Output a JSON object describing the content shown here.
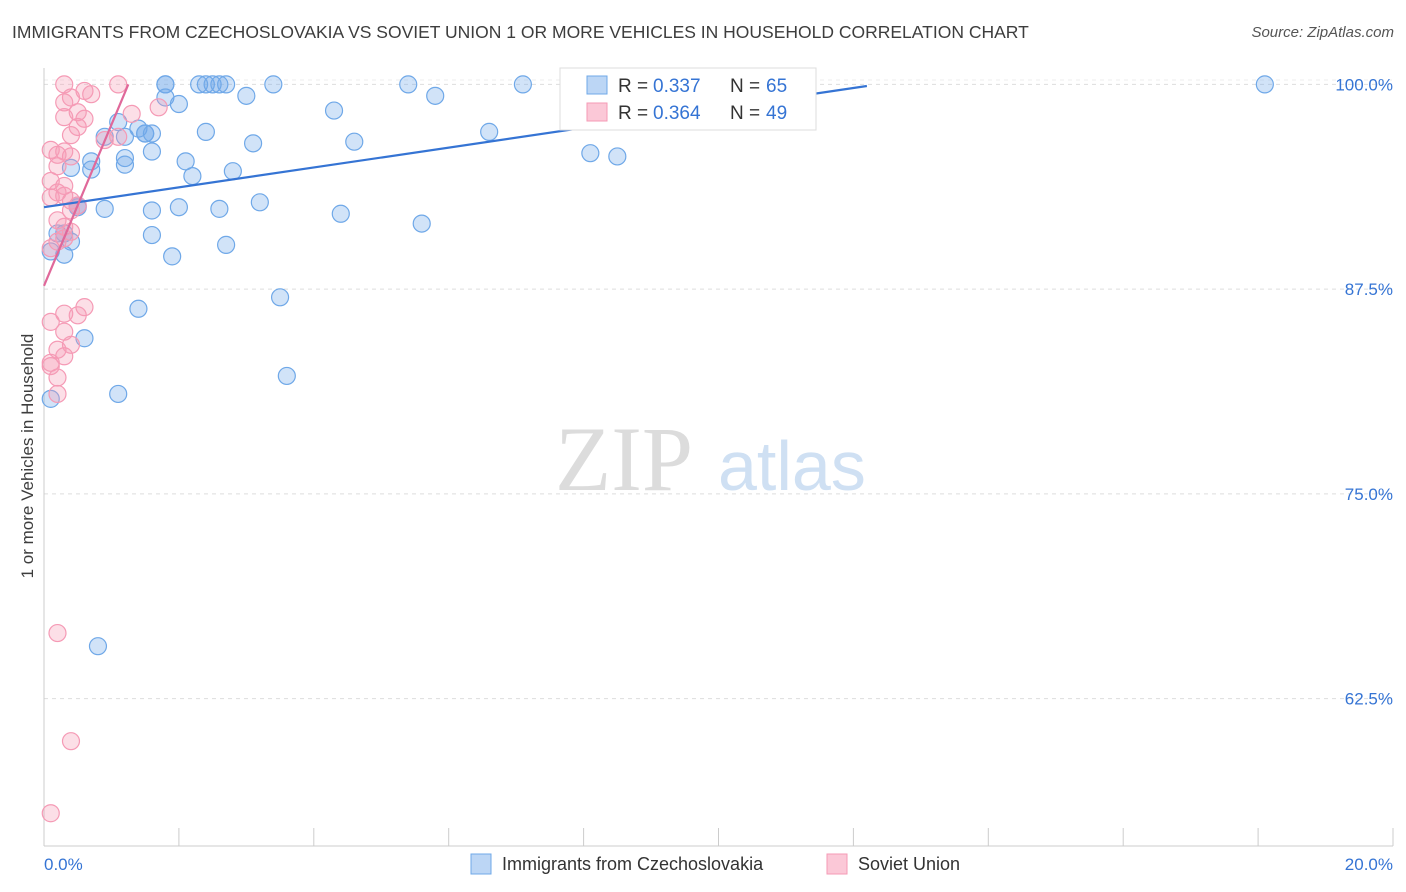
{
  "chart_data": {
    "type": "scatter",
    "title": "IMMIGRANTS FROM CZECHOSLOVAKIA VS SOVIET UNION 1 OR MORE VEHICLES IN HOUSEHOLD CORRELATION CHART",
    "source": "Source: ZipAtlas.com",
    "watermark": {
      "zip": "ZIP",
      "atlas": "atlas"
    },
    "xlabel": "",
    "ylabel": "1 or more Vehicles in Household",
    "xlim": [
      0,
      20
    ],
    "ylim": [
      53.5,
      101
    ],
    "x_tick_labels": [
      {
        "value": 0,
        "label": "0.0%"
      },
      {
        "value": 20,
        "label": "20.0%"
      }
    ],
    "y_tick_labels": [
      {
        "value": 100,
        "label": "100.0%"
      },
      {
        "value": 87.5,
        "label": "87.5%"
      },
      {
        "value": 75,
        "label": "75.0%"
      },
      {
        "value": 62.5,
        "label": "62.5%"
      }
    ],
    "grid": true,
    "legend_position": "top-center",
    "series": [
      {
        "name": "Immigrants from Czechoslovakia",
        "color": "#6fa8e8",
        "line_color": "#3574d4",
        "R": "0.337",
        "N": "65",
        "trend": {
          "x": [
            0,
            12.2
          ],
          "y": [
            92.5,
            99.9
          ]
        },
        "points": [
          [
            1.8,
            100
          ],
          [
            1.8,
            100
          ],
          [
            2.3,
            100
          ],
          [
            2.4,
            100
          ],
          [
            2.5,
            100
          ],
          [
            2.6,
            100
          ],
          [
            2.7,
            100
          ],
          [
            3.4,
            100
          ],
          [
            5.4,
            100
          ],
          [
            7.1,
            100
          ],
          [
            18.1,
            100
          ],
          [
            1.8,
            99.2
          ],
          [
            3.0,
            99.3
          ],
          [
            5.8,
            99.3
          ],
          [
            2.0,
            98.8
          ],
          [
            4.3,
            98.4
          ],
          [
            1.1,
            97.7
          ],
          [
            1.4,
            97.3
          ],
          [
            1.5,
            97.0
          ],
          [
            1.5,
            97.0
          ],
          [
            1.6,
            97.0
          ],
          [
            2.4,
            97.1
          ],
          [
            6.6,
            97.1
          ],
          [
            0.9,
            96.8
          ],
          [
            1.2,
            96.8
          ],
          [
            3.1,
            96.4
          ],
          [
            4.6,
            96.5
          ],
          [
            1.6,
            95.9
          ],
          [
            8.1,
            95.8
          ],
          [
            8.5,
            95.6
          ],
          [
            1.2,
            95.5
          ],
          [
            0.7,
            95.3
          ],
          [
            2.1,
            95.3
          ],
          [
            1.2,
            95.1
          ],
          [
            0.4,
            94.9
          ],
          [
            0.7,
            94.8
          ],
          [
            2.8,
            94.7
          ],
          [
            2.2,
            94.4
          ],
          [
            0.5,
            92.6
          ],
          [
            0.5,
            92.5
          ],
          [
            0.9,
            92.4
          ],
          [
            2.0,
            92.5
          ],
          [
            2.6,
            92.4
          ],
          [
            1.6,
            92.3
          ],
          [
            3.2,
            92.8
          ],
          [
            4.4,
            92.1
          ],
          [
            5.6,
            91.5
          ],
          [
            0.2,
            90.9
          ],
          [
            0.3,
            90.9
          ],
          [
            0.4,
            90.4
          ],
          [
            1.6,
            90.8
          ],
          [
            2.7,
            90.2
          ],
          [
            0.1,
            89.8
          ],
          [
            0.3,
            89.6
          ],
          [
            1.9,
            89.5
          ],
          [
            3.5,
            87.0
          ],
          [
            1.4,
            86.3
          ],
          [
            0.6,
            84.5
          ],
          [
            3.6,
            82.2
          ],
          [
            1.1,
            81.1
          ],
          [
            0.1,
            80.8
          ],
          [
            0.8,
            65.7
          ]
        ]
      },
      {
        "name": "Soviet Union",
        "color": "#f59ab5",
        "line_color": "#e0689a",
        "R": "0.364",
        "N": "49",
        "trend": {
          "x": [
            0,
            1.25
          ],
          "y": [
            87.7,
            100
          ]
        },
        "points": [
          [
            0.3,
            100
          ],
          [
            1.1,
            100
          ],
          [
            0.6,
            99.6
          ],
          [
            0.4,
            99.2
          ],
          [
            0.7,
            99.4
          ],
          [
            0.3,
            98.9
          ],
          [
            1.7,
            98.6
          ],
          [
            0.5,
            98.3
          ],
          [
            0.3,
            98.0
          ],
          [
            1.3,
            98.2
          ],
          [
            0.6,
            97.9
          ],
          [
            0.5,
            97.4
          ],
          [
            0.4,
            96.9
          ],
          [
            0.9,
            96.6
          ],
          [
            1.1,
            96.8
          ],
          [
            0.1,
            96.0
          ],
          [
            0.3,
            95.9
          ],
          [
            0.2,
            95.7
          ],
          [
            0.4,
            95.6
          ],
          [
            0.2,
            95.0
          ],
          [
            0.1,
            94.1
          ],
          [
            0.3,
            93.8
          ],
          [
            0.2,
            93.4
          ],
          [
            0.3,
            93.2
          ],
          [
            0.1,
            93.1
          ],
          [
            0.4,
            92.9
          ],
          [
            0.5,
            92.6
          ],
          [
            0.4,
            92.3
          ],
          [
            0.2,
            91.7
          ],
          [
            0.3,
            91.3
          ],
          [
            0.4,
            91.0
          ],
          [
            0.3,
            90.6
          ],
          [
            0.2,
            90.4
          ],
          [
            0.1,
            90.0
          ],
          [
            0.6,
            86.4
          ],
          [
            0.3,
            86.0
          ],
          [
            0.5,
            85.9
          ],
          [
            0.1,
            85.5
          ],
          [
            0.3,
            84.9
          ],
          [
            0.4,
            84.1
          ],
          [
            0.2,
            83.8
          ],
          [
            0.3,
            83.4
          ],
          [
            0.1,
            83.0
          ],
          [
            0.1,
            82.8
          ],
          [
            0.2,
            81.1
          ],
          [
            0.2,
            66.5
          ],
          [
            0.4,
            59.9
          ],
          [
            0.1,
            55.5
          ],
          [
            0.2,
            82.1
          ]
        ]
      }
    ]
  }
}
